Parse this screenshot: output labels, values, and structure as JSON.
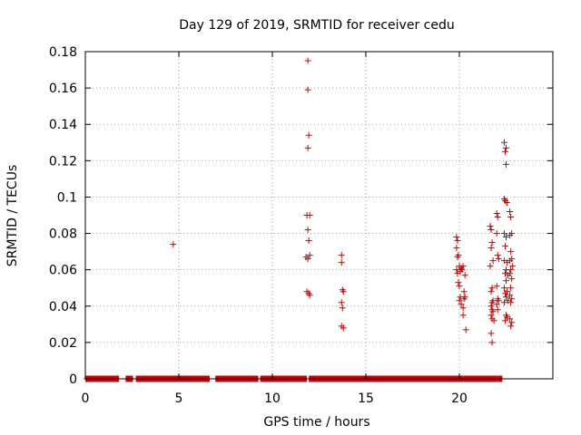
{
  "chart_data": {
    "type": "scatter",
    "title": "Day 129 of 2019, SRMTID for receiver cedu",
    "xlabel": "GPS time / hours",
    "ylabel": "SRMTID / TECUs",
    "xlim": [
      0,
      25
    ],
    "ylim": [
      0,
      0.18
    ],
    "xticks": [
      0,
      5,
      10,
      15,
      20
    ],
    "yticks": [
      0,
      0.02,
      0.04,
      0.06,
      0.08,
      0.1,
      0.12,
      0.14,
      0.16,
      0.18
    ],
    "xtick_labels": [
      "0",
      "5",
      "10",
      "15",
      "20"
    ],
    "ytick_labels": [
      "0",
      "0.02",
      "0.04",
      "0.06",
      "0.08",
      "0.1",
      "0.12",
      "0.14",
      "0.16",
      "0.18"
    ],
    "grid": true,
    "marker": "+",
    "color": "#cc0000",
    "baseline_segments": [
      [
        0.05,
        1.75
      ],
      [
        2.2,
        2.5
      ],
      [
        2.75,
        6.6
      ],
      [
        7.0,
        9.2
      ],
      [
        9.4,
        11.8
      ],
      [
        12.0,
        20.15
      ],
      [
        20.25,
        21.95
      ],
      [
        22.05,
        22.25
      ]
    ],
    "series": [
      {
        "x": [
          4.7,
          11.9,
          11.9,
          11.95,
          11.9,
          12.0,
          11.85,
          11.9,
          11.95,
          12.0,
          11.8,
          11.9,
          11.85,
          11.95,
          12.0,
          13.7,
          13.7,
          13.75,
          13.8,
          13.7,
          13.75,
          13.7,
          13.8,
          19.85,
          19.9,
          19.85,
          19.95,
          19.9,
          20.0,
          19.85,
          20.05,
          19.9,
          19.95,
          20.0,
          20.1,
          20.2,
          20.15,
          20.3,
          20.25,
          20.05,
          20.0,
          20.1,
          20.2,
          20.3,
          20.25,
          20.2,
          20.35,
          21.65,
          21.7,
          21.75,
          21.7,
          21.8,
          21.65,
          21.75,
          21.7,
          21.8,
          21.75,
          21.7,
          21.75,
          21.8,
          21.7,
          21.75,
          21.85,
          21.7,
          21.75,
          22.0,
          22.05,
          22.0,
          22.05,
          22.1,
          22.0,
          22.05,
          22.1,
          22.0,
          22.05,
          22.4,
          22.5,
          22.45,
          22.5,
          22.4,
          22.45,
          22.55,
          22.4,
          22.5,
          22.45,
          22.4,
          22.55,
          22.5,
          22.45,
          22.6,
          22.5,
          22.4,
          22.55,
          22.45,
          22.5,
          22.6,
          22.4,
          22.5,
          22.55,
          22.45,
          22.7,
          22.75,
          22.8,
          22.7,
          22.75,
          22.8,
          22.7,
          22.85,
          22.75,
          22.7,
          22.8,
          22.75,
          22.7,
          22.8,
          22.75,
          22.7,
          22.8,
          22.75
        ],
        "y": [
          0.074,
          0.175,
          0.159,
          0.134,
          0.127,
          0.09,
          0.09,
          0.082,
          0.076,
          0.068,
          0.067,
          0.066,
          0.048,
          0.047,
          0.046,
          0.068,
          0.064,
          0.049,
          0.048,
          0.042,
          0.039,
          0.029,
          0.028,
          0.078,
          0.076,
          0.072,
          0.068,
          0.067,
          0.062,
          0.06,
          0.059,
          0.058,
          0.053,
          0.051,
          0.061,
          0.062,
          0.06,
          0.057,
          0.048,
          0.045,
          0.043,
          0.041,
          0.039,
          0.045,
          0.044,
          0.035,
          0.027,
          0.084,
          0.082,
          0.075,
          0.072,
          0.065,
          0.062,
          0.05,
          0.048,
          0.043,
          0.042,
          0.04,
          0.038,
          0.037,
          0.035,
          0.033,
          0.032,
          0.025,
          0.02,
          0.091,
          0.089,
          0.08,
          0.068,
          0.066,
          0.051,
          0.044,
          0.043,
          0.041,
          0.038,
          0.13,
          0.127,
          0.125,
          0.118,
          0.099,
          0.098,
          0.097,
          0.08,
          0.078,
          0.073,
          0.065,
          0.064,
          0.06,
          0.058,
          0.057,
          0.054,
          0.05,
          0.048,
          0.047,
          0.045,
          0.043,
          0.042,
          0.035,
          0.034,
          0.032,
          0.092,
          0.089,
          0.08,
          0.079,
          0.07,
          0.066,
          0.065,
          0.062,
          0.06,
          0.058,
          0.055,
          0.05,
          0.046,
          0.044,
          0.042,
          0.033,
          0.031,
          0.029
        ]
      }
    ]
  }
}
